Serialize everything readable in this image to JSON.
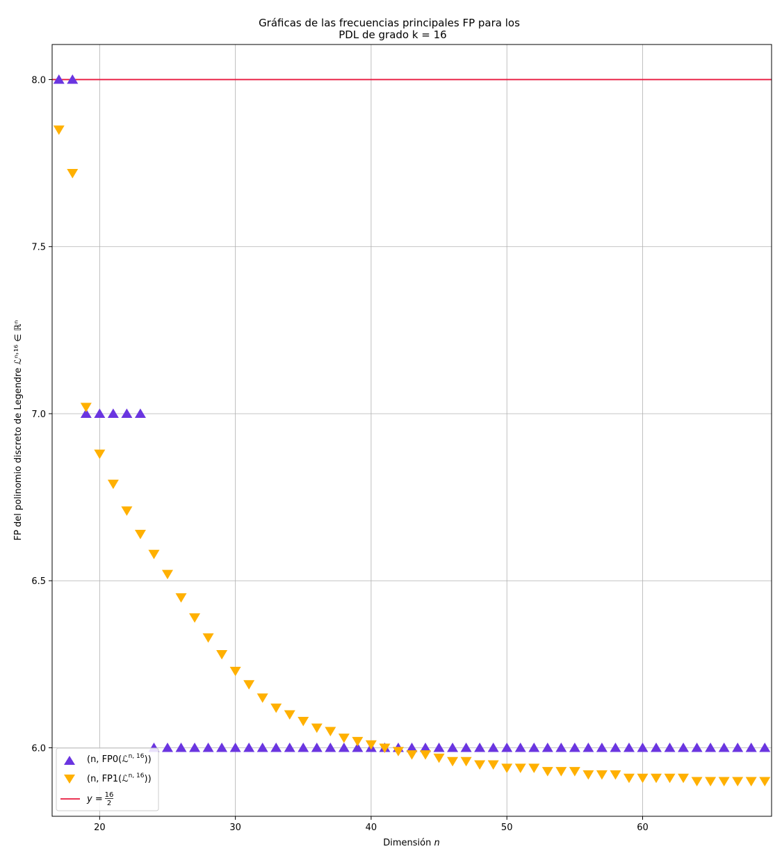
{
  "chart_data": {
    "type": "scatter",
    "title_line1": "Gráficas de las frecuencias principales FP para los",
    "title_line2": "PDL de grado k = 16",
    "xlabel_text": "Dimensión ",
    "xlabel_var": "n",
    "ylabel": "FP del polinomio discreto de Legendre ℒⁿ˒¹⁶ ∈ ℝⁿ",
    "xlim": [
      16.5,
      69.5
    ],
    "ylim": [
      5.795,
      8.105
    ],
    "xticks": [
      20,
      30,
      40,
      50,
      60
    ],
    "yticks": [
      6.0,
      6.5,
      7.0,
      7.5,
      8.0
    ],
    "ytick_labels": [
      "6.0",
      "6.5",
      "7.0",
      "7.5",
      "8.0"
    ],
    "grid": true,
    "legend_position": "lower-left",
    "series": [
      {
        "name": "(n, FP0(ℒⁿ˒¹⁶))",
        "marker": "triangle-up",
        "color": "#6a35e0",
        "x": [
          17,
          18,
          19,
          20,
          21,
          22,
          23,
          24,
          25,
          26,
          27,
          28,
          29,
          30,
          31,
          32,
          33,
          34,
          35,
          36,
          37,
          38,
          39,
          40,
          41,
          42,
          43,
          44,
          45,
          46,
          47,
          48,
          49,
          50,
          51,
          52,
          53,
          54,
          55,
          56,
          57,
          58,
          59,
          60,
          61,
          62,
          63,
          64,
          65,
          66,
          67,
          68,
          69
        ],
        "y": [
          8,
          8,
          7,
          7,
          7,
          7,
          7,
          6,
          6,
          6,
          6,
          6,
          6,
          6,
          6,
          6,
          6,
          6,
          6,
          6,
          6,
          6,
          6,
          6,
          6,
          6,
          6,
          6,
          6,
          6,
          6,
          6,
          6,
          6,
          6,
          6,
          6,
          6,
          6,
          6,
          6,
          6,
          6,
          6,
          6,
          6,
          6,
          6,
          6,
          6,
          6,
          6,
          6
        ]
      },
      {
        "name": "(n, FP1(ℒⁿ˒¹⁶))",
        "marker": "triangle-down",
        "color": "#ffb000",
        "x": [
          17,
          18,
          19,
          20,
          21,
          22,
          23,
          24,
          25,
          26,
          27,
          28,
          29,
          30,
          31,
          32,
          33,
          34,
          35,
          36,
          37,
          38,
          39,
          40,
          41,
          42,
          43,
          44,
          45,
          46,
          47,
          48,
          49,
          50,
          51,
          52,
          53,
          54,
          55,
          56,
          57,
          58,
          59,
          60,
          61,
          62,
          63,
          64,
          65,
          66,
          67,
          68,
          69
        ],
        "y": [
          7.85,
          7.72,
          7.02,
          6.88,
          6.79,
          6.71,
          6.64,
          6.58,
          6.52,
          6.45,
          6.39,
          6.33,
          6.28,
          6.23,
          6.19,
          6.15,
          6.12,
          6.1,
          6.08,
          6.06,
          6.05,
          6.03,
          6.02,
          6.01,
          6.0,
          5.99,
          5.98,
          5.98,
          5.97,
          5.96,
          5.96,
          5.95,
          5.95,
          5.94,
          5.94,
          5.94,
          5.93,
          5.93,
          5.93,
          5.92,
          5.92,
          5.92,
          5.91,
          5.91,
          5.91,
          5.91,
          5.91,
          5.9,
          5.9,
          5.9,
          5.9,
          5.9,
          5.9
        ]
      },
      {
        "name": "y = 16/2",
        "marker": "line",
        "color": "#e8173c",
        "y_const": 8.0
      }
    ],
    "legend": {
      "entry1_prefix": "(n, FP0(",
      "entry2_prefix": "(n, FP1(",
      "entry_sup": "n, 16",
      "entry3_prefix": "y = ",
      "entry3_num": "16",
      "entry3_den": "2"
    }
  }
}
